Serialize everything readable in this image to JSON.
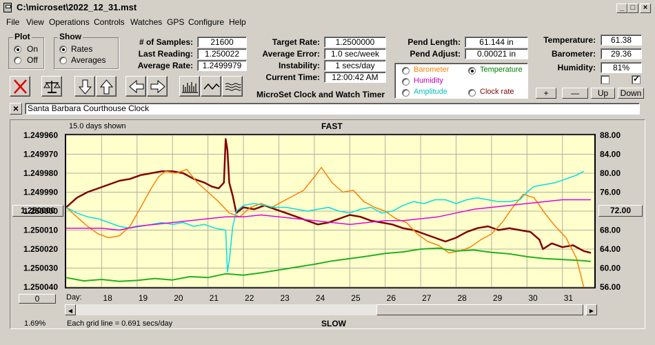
{
  "window": {
    "title": "C:\\microset\\2022_12_31.mst"
  },
  "menu": [
    "File",
    "View",
    "Operations",
    "Controls",
    "Watches",
    "GPS",
    "Configure",
    "Help"
  ],
  "plot_group": {
    "title": "Plot",
    "on": "On",
    "off": "Off",
    "selected": "On"
  },
  "show_group": {
    "title": "Show",
    "rates": "Rates",
    "averages": "Averages",
    "selected": "Rates"
  },
  "stats": {
    "samples_label": "# of Samples:",
    "samples": "21600",
    "last_label": "Last Reading:",
    "last": "1.250022",
    "avg_label": "Average Rate:",
    "avg": "1.2499979"
  },
  "target": {
    "target_label": "Target Rate:",
    "target": "1.2500000",
    "error_label": "Average Error:",
    "error": "1.0 sec/week",
    "instab_label": "Instability:",
    "instab": "1 secs/day",
    "time_label": "Current Time:",
    "time": "12:00:42 AM"
  },
  "pend": {
    "length_label": "Pend Length:",
    "length": "61.144 in",
    "adjust_label": "Pend Adjust:",
    "adjust": "0.00021 in"
  },
  "env": {
    "temp_label": "Temperature:",
    "temp": "61.38",
    "baro_label": "Barometer:",
    "baro": "29.36",
    "hum_label": "Humidity:",
    "hum": "81%"
  },
  "env_checks": [
    false,
    true
  ],
  "overlay": {
    "options": [
      {
        "label": "Barometer",
        "color": "#ff8000"
      },
      {
        "label": "Temperature",
        "color": "#008000"
      },
      {
        "label": "Humidity",
        "color": "#c000c0"
      },
      {
        "label": "Amplitude",
        "color": "#00c0c0"
      },
      {
        "label": "Clock rate",
        "color": "#800000"
      }
    ],
    "selected": "Temperature"
  },
  "step_buttons": [
    "+",
    "—",
    "Up",
    "Down"
  ],
  "app_name": "MicroSet Clock and Watch Timer",
  "clock_name": "Santa Barbara Courthouse Clock",
  "close_x": "×",
  "chart_header": {
    "days_shown": "15.0 days shown",
    "fast": "FAST",
    "slow": "SLOW",
    "grid_note": "Each grid line = 0.691 secs/day",
    "percent": "1.69%",
    "day_label": "Day:"
  },
  "left_box": "1.250000",
  "right_box": "72.00",
  "bottom_box": "0",
  "icons": [
    "cancel-icon",
    "balance-icon",
    "arrow-down-icon",
    "arrow-up-icon",
    "arrow-left-icon",
    "arrow-right-icon",
    "bars-icon",
    "wave-icon",
    "ripple-icon"
  ],
  "chart_data": {
    "type": "line",
    "x_days": [
      18,
      19,
      20,
      21,
      22,
      23,
      24,
      25,
      26,
      27,
      28,
      29,
      30,
      31
    ],
    "x_ticks": [
      "18",
      "19",
      "20",
      "21",
      "22",
      "23",
      "24",
      "25",
      "26",
      "27",
      "28",
      "29",
      "30",
      "31"
    ],
    "y_left_ticks": [
      "1.249960",
      "1.249970",
      "1.249980",
      "1.249990",
      "1.250000",
      "1.250010",
      "1.250020",
      "1.250030",
      "1.250040"
    ],
    "y_left_range": [
      1.24996,
      1.25004
    ],
    "y_right_ticks": [
      "88.00",
      "84.00",
      "80.00",
      "76.00",
      "72.00",
      "68.00",
      "64.00",
      "60.00",
      "56.00"
    ],
    "y_right_range": [
      56,
      88
    ],
    "grid": true,
    "series": [
      {
        "name": "Clock rate",
        "color": "#800000",
        "axis": "left",
        "width": 2.5,
        "x": [
          17.0,
          17.3,
          17.6,
          17.9,
          18.2,
          18.5,
          18.8,
          19.1,
          19.4,
          19.7,
          20.0,
          20.3,
          20.6,
          20.9,
          21.1,
          21.3,
          21.45,
          21.5,
          21.55,
          21.6,
          21.7,
          21.8,
          22.0,
          22.3,
          22.6,
          22.9,
          23.2,
          23.5,
          23.8,
          24.1,
          24.4,
          24.7,
          25.0,
          25.3,
          25.6,
          25.9,
          26.2,
          26.5,
          26.8,
          27.1,
          27.4,
          27.7,
          28.0,
          28.3,
          28.6,
          28.9,
          29.2,
          29.5,
          29.8,
          30.1,
          30.35,
          30.45,
          30.7,
          31.0,
          31.3,
          31.6,
          31.8
        ],
        "y": [
          1.249998,
          1.249993,
          1.24999,
          1.249988,
          1.249986,
          1.249984,
          1.249983,
          1.249981,
          1.24998,
          1.249979,
          1.249979,
          1.24998,
          1.249983,
          1.249985,
          1.249987,
          1.249988,
          1.249985,
          1.249962,
          1.249968,
          1.249985,
          1.249992,
          1.250001,
          1.249998,
          1.249999,
          1.249997,
          1.249999,
          1.250001,
          1.250003,
          1.250005,
          1.250007,
          1.250006,
          1.250004,
          1.250002,
          1.250003,
          1.250005,
          1.250006,
          1.250007,
          1.250009,
          1.25001,
          1.250012,
          1.250014,
          1.250016,
          1.250014,
          1.250011,
          1.250009,
          1.250008,
          1.25001,
          1.250009,
          1.25001,
          1.250011,
          1.250015,
          1.25002,
          1.250017,
          1.250019,
          1.250018,
          1.250021,
          1.250022
        ]
      },
      {
        "name": "Barometer",
        "color": "#ff8000",
        "axis": "left",
        "width": 1.5,
        "x": [
          17.0,
          17.3,
          17.6,
          17.9,
          18.2,
          18.5,
          18.8,
          19.1,
          19.4,
          19.6,
          19.8,
          20.1,
          20.4,
          20.7,
          21.0,
          21.3,
          21.6,
          21.9,
          22.2,
          22.5,
          22.8,
          23.1,
          23.4,
          23.7,
          24.0,
          24.2,
          24.5,
          24.8,
          25.1,
          25.4,
          25.7,
          26.0,
          26.3,
          26.6,
          26.9,
          27.2,
          27.5,
          27.8,
          28.1,
          28.4,
          28.7,
          29.0,
          29.3,
          29.6,
          29.9,
          30.2,
          30.5,
          30.8,
          31.1,
          31.4,
          31.6
        ],
        "y": [
          1.249998,
          1.250003,
          1.250008,
          1.250012,
          1.250014,
          1.250013,
          1.250008,
          1.249998,
          1.249988,
          1.249982,
          1.249979,
          1.24998,
          1.249978,
          1.249985,
          1.24999,
          1.249995,
          1.250001,
          1.250003,
          1.249998,
          1.249996,
          1.249998,
          1.249995,
          1.249992,
          1.249989,
          1.249982,
          1.249977,
          1.249985,
          1.24999,
          1.249989,
          1.249995,
          1.249998,
          1.25,
          1.250004,
          1.250006,
          1.250012,
          1.250016,
          1.250018,
          1.250022,
          1.250021,
          1.250019,
          1.250015,
          1.250012,
          1.250006,
          1.249998,
          1.249991,
          1.249993,
          1.250001,
          1.250008,
          1.250014,
          1.250025,
          1.25004
        ]
      },
      {
        "name": "Amplitude",
        "color": "#00e0e0",
        "axis": "left",
        "width": 1.5,
        "x": [
          17.0,
          17.3,
          17.6,
          17.9,
          18.2,
          18.5,
          18.8,
          19.1,
          19.4,
          19.7,
          20.0,
          20.3,
          20.6,
          20.9,
          21.2,
          21.5,
          21.55,
          21.6,
          21.7,
          21.8,
          22.0,
          22.3,
          22.6,
          22.9,
          23.2,
          23.5,
          23.8,
          24.1,
          24.4,
          24.7,
          25.0,
          25.3,
          25.6,
          25.9,
          26.2,
          26.5,
          26.8,
          27.1,
          27.4,
          27.7,
          28.0,
          28.3,
          28.6,
          28.9,
          29.2,
          29.5,
          29.8,
          30.0,
          30.2,
          30.5,
          30.8,
          31.1,
          31.4,
          31.6
        ],
        "y": [
          1.249998,
          1.250001,
          1.250003,
          1.250004,
          1.250006,
          1.250008,
          1.250009,
          1.250008,
          1.250007,
          1.250006,
          1.250007,
          1.250006,
          1.250008,
          1.250007,
          1.250009,
          1.25001,
          1.250032,
          1.250026,
          1.250008,
          1.25,
          1.249997,
          1.249996,
          1.249997,
          1.249998,
          1.249998,
          1.249999,
          1.25,
          1.249999,
          1.249998,
          1.25,
          1.250001,
          1.249999,
          1.249998,
          1.250001,
          1.25,
          1.249997,
          1.249995,
          1.249996,
          1.249994,
          1.249994,
          1.249996,
          1.249994,
          1.249993,
          1.249994,
          1.249995,
          1.249995,
          1.249994,
          1.24999,
          1.249987,
          1.249986,
          1.249985,
          1.249983,
          1.249981,
          1.249979
        ]
      },
      {
        "name": "Humidity",
        "color": "#e000e0",
        "axis": "left",
        "width": 1.5,
        "x": [
          17.0,
          17.5,
          18.0,
          18.5,
          19.0,
          19.5,
          20.0,
          20.5,
          21.0,
          21.5,
          22.0,
          22.5,
          23.0,
          23.5,
          24.0,
          24.5,
          25.0,
          25.5,
          26.0,
          26.5,
          27.0,
          27.5,
          28.0,
          28.5,
          29.0,
          29.5,
          30.0,
          30.5,
          31.0,
          31.5,
          31.8
        ],
        "y": [
          1.250009,
          1.250009,
          1.250009,
          1.25001,
          1.250008,
          1.250007,
          1.250006,
          1.250005,
          1.250004,
          1.250003,
          1.250003,
          1.250002,
          1.250003,
          1.250004,
          1.250005,
          1.250006,
          1.250007,
          1.250006,
          1.250005,
          1.250005,
          1.250004,
          1.250003,
          1.250001,
          1.249999,
          1.249998,
          1.249997,
          1.249996,
          1.249995,
          1.249994,
          1.249994,
          1.249994
        ]
      },
      {
        "name": "Temperature",
        "color": "#20b020",
        "axis": "right",
        "width": 2,
        "x": [
          17.0,
          17.5,
          18.0,
          18.5,
          19.0,
          19.5,
          20.0,
          20.5,
          21.0,
          21.5,
          22.0,
          22.5,
          23.0,
          23.5,
          24.0,
          24.5,
          25.0,
          25.5,
          26.0,
          26.5,
          27.0,
          27.5,
          28.0,
          28.5,
          29.0,
          29.5,
          30.0,
          30.5,
          31.0,
          31.5,
          31.8
        ],
        "y": [
          58.0,
          57.3,
          57.6,
          57.2,
          57.4,
          57.8,
          57.5,
          58.2,
          58.0,
          58.8,
          58.5,
          59.0,
          59.6,
          60.2,
          60.8,
          61.5,
          62.0,
          62.5,
          63.1,
          63.4,
          64.0,
          64.2,
          63.6,
          63.8,
          63.3,
          63.0,
          62.4,
          62.0,
          61.8,
          61.6,
          61.4
        ]
      }
    ]
  }
}
